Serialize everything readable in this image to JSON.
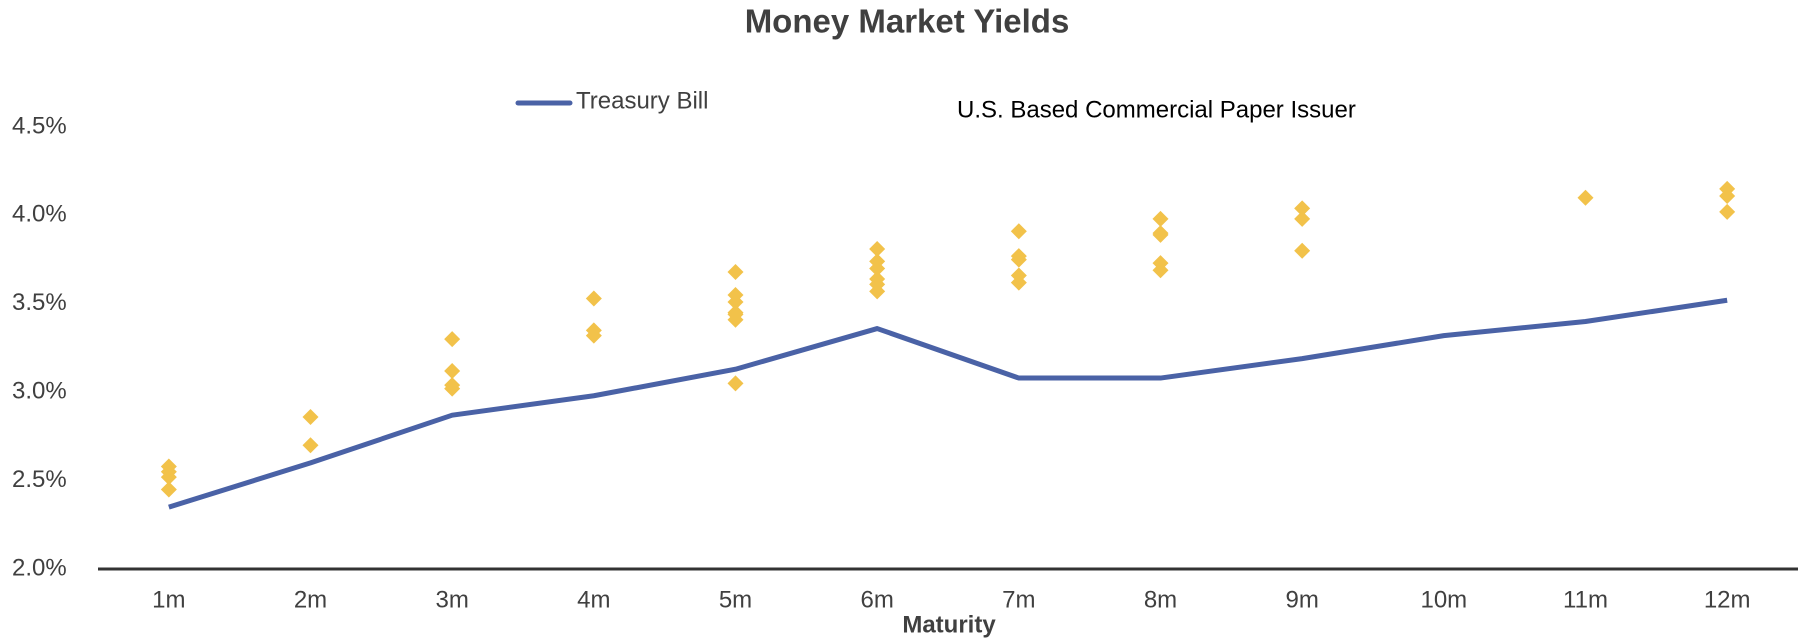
{
  "chart_data": {
    "type": "line",
    "title": "Money Market Yields",
    "x_label": "Maturity",
    "categories": [
      "1m",
      "2m",
      "3m",
      "4m",
      "5m",
      "6m",
      "7m",
      "8m",
      "9m",
      "10m",
      "11m",
      "12m"
    ],
    "ylim": [
      2.0,
      4.5
    ],
    "yticks": [
      {
        "value": 2.0,
        "label": "2.0%"
      },
      {
        "value": 2.5,
        "label": "2.5%"
      },
      {
        "value": 3.0,
        "label": "3.0%"
      },
      {
        "value": 3.5,
        "label": "3.5%"
      },
      {
        "value": 4.0,
        "label": "4.0%"
      },
      {
        "value": 4.5,
        "label": "4.5%"
      }
    ],
    "grid": false,
    "series": [
      {
        "name": "Treasury Bill",
        "type": "line",
        "color": "#4a62a6",
        "values": [
          2.35,
          2.6,
          2.87,
          2.98,
          3.13,
          3.36,
          3.08,
          3.08,
          3.19,
          3.32,
          3.4,
          3.52
        ]
      },
      {
        "name": "U.S. Based Commercial Paper Issuer",
        "type": "scatter",
        "color": "#f2c24a",
        "x": [
          "1m",
          "1m",
          "1m",
          "1m",
          "2m",
          "2m",
          "3m",
          "3m",
          "3m",
          "3m",
          "4m",
          "4m",
          "4m",
          "5m",
          "5m",
          "5m",
          "5m",
          "5m",
          "5m",
          "5m",
          "6m",
          "6m",
          "6m",
          "6m",
          "6m",
          "6m",
          "7m",
          "7m",
          "7m",
          "7m",
          "7m",
          "8m",
          "8m",
          "8m",
          "8m",
          "8m",
          "9m",
          "9m",
          "9m",
          "11m",
          "12m",
          "12m",
          "12m"
        ],
        "values": [
          2.58,
          2.55,
          2.52,
          2.45,
          2.86,
          2.7,
          3.3,
          3.12,
          3.04,
          3.02,
          3.53,
          3.35,
          3.32,
          3.68,
          3.55,
          3.51,
          3.45,
          3.44,
          3.41,
          3.05,
          3.81,
          3.74,
          3.7,
          3.64,
          3.61,
          3.57,
          3.91,
          3.77,
          3.75,
          3.66,
          3.62,
          3.98,
          3.9,
          3.89,
          3.73,
          3.69,
          4.04,
          3.98,
          3.8,
          4.1,
          4.15,
          4.11,
          4.02
        ]
      }
    ]
  }
}
